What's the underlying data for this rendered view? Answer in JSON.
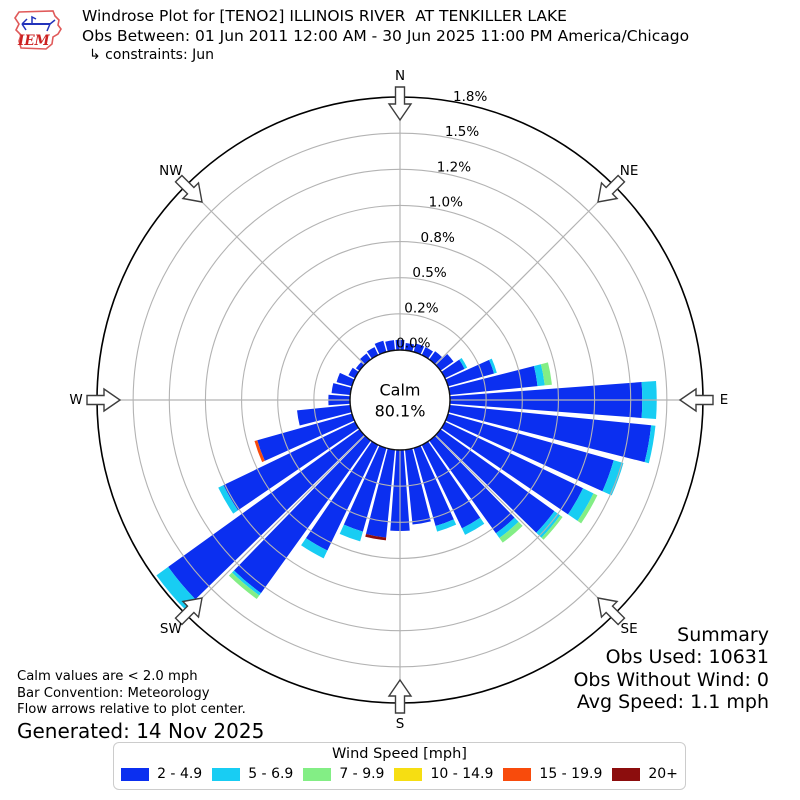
{
  "header": {
    "title": "Windrose Plot for [TENO2] ILLINOIS RIVER  AT TENKILLER LAKE",
    "subtitle": "Obs Between: 01 Jun 2011 12:00 AM - 30 Jun 2025 11:00 PM America/Chicago",
    "constraints": "↳ constraints: Jun",
    "logo_text": "IEM"
  },
  "compass": {
    "labels": [
      "N",
      "NE",
      "E",
      "SE",
      "S",
      "SW",
      "W",
      "NW"
    ],
    "angles_deg": [
      0,
      45,
      90,
      135,
      180,
      225,
      270,
      315
    ]
  },
  "calm": {
    "label": "Calm",
    "value": "80.1%"
  },
  "notes": {
    "lines": [
      "Calm values are < 2.0 mph",
      "Bar Convention: Meteorology",
      "Flow arrows relative to plot center."
    ],
    "generated": "Generated: 14 Nov 2025"
  },
  "summary": {
    "title": "Summary",
    "lines": [
      "Obs Used: 10631",
      "Obs Without Wind: 0",
      "Avg Speed: 1.1 mph"
    ]
  },
  "legend": {
    "title": "Wind Speed [mph]",
    "classes": [
      {
        "label": "2 - 4.9",
        "color": "#0b2ff0"
      },
      {
        "label": "5 - 6.9",
        "color": "#18cdf3"
      },
      {
        "label": "7 - 9.9",
        "color": "#83ee85"
      },
      {
        "label": "10 - 14.9",
        "color": "#f6de12"
      },
      {
        "label": "15 - 19.9",
        "color": "#f84b0c"
      },
      {
        "label": "20+",
        "color": "#8c0d0d"
      }
    ]
  },
  "colors": {
    "grid": "#b3b3b3",
    "outer_ring": "#000000",
    "arrow_stroke": "#3d3d3d",
    "logo_red": "#e05a5a",
    "logo_blue": "#2233bb",
    "logo_text_red": "#c22"
  },
  "chart_data": {
    "type": "windrose",
    "units": "% of observations",
    "rlim": [
      0,
      1.75
    ],
    "ring_labels": [
      "0.0%",
      "0.2%",
      "0.5%",
      "0.8%",
      "1.0%",
      "1.2%",
      "1.5%",
      "1.8%"
    ],
    "ring_values_percent": [
      0,
      0.25,
      0.5,
      0.75,
      1.0,
      1.25,
      1.5,
      1.75
    ],
    "calm_percent": 80.1,
    "bar_sector_deg": 8.5,
    "direction_bins_deg": [
      0,
      10,
      20,
      30,
      40,
      50,
      60,
      70,
      80,
      90,
      100,
      110,
      120,
      130,
      140,
      150,
      160,
      170,
      180,
      190,
      200,
      210,
      220,
      230,
      240,
      250,
      260,
      270,
      280,
      290,
      300,
      310,
      320,
      330,
      340,
      350
    ],
    "series": [
      {
        "name": "2 - 4.9",
        "color": "#0b2ff0",
        "values": [
          0.07,
          0.05,
          0.06,
          0.06,
          0.07,
          0.11,
          0.15,
          0.33,
          0.61,
          1.33,
          1.4,
          1.19,
          1.06,
          0.97,
          0.79,
          0.64,
          0.56,
          0.52,
          0.56,
          0.61,
          0.6,
          0.81,
          1.3,
          1.63,
          1.01,
          0.68,
          0.37,
          0.15,
          0.13,
          0.11,
          0.05,
          0.03,
          0.05,
          0.06,
          0.08,
          0.07
        ]
      },
      {
        "name": "5 - 6.9",
        "color": "#18cdf3",
        "values": [
          0,
          0,
          0,
          0,
          0,
          0,
          0.02,
          0.02,
          0.05,
          0.1,
          0.03,
          0.07,
          0.08,
          0.05,
          0.04,
          0.05,
          0.04,
          0,
          0,
          0,
          0.07,
          0.06,
          0.02,
          0.1,
          0.04,
          0,
          0,
          0,
          0,
          0,
          0,
          0,
          0,
          0,
          0,
          0
        ]
      },
      {
        "name": "7 - 9.9",
        "color": "#83ee85",
        "values": [
          0,
          0,
          0,
          0,
          0,
          0,
          0,
          0,
          0.05,
          0,
          0,
          0,
          0.03,
          0.02,
          0.04,
          0,
          0,
          0,
          0,
          0,
          0,
          0,
          0.03,
          0,
          0,
          0,
          0,
          0,
          0,
          0,
          0,
          0,
          0,
          0,
          0,
          0
        ]
      },
      {
        "name": "10 - 14.9",
        "color": "#f6de12",
        "values": [
          0,
          0,
          0,
          0,
          0,
          0,
          0,
          0,
          0,
          0,
          0,
          0,
          0,
          0,
          0,
          0,
          0,
          0,
          0,
          0,
          0,
          0,
          0,
          0,
          0,
          0,
          0,
          0,
          0,
          0,
          0,
          0,
          0,
          0,
          0,
          0
        ]
      },
      {
        "name": "15 - 19.9",
        "color": "#f84b0c",
        "values": [
          0,
          0,
          0,
          0,
          0,
          0,
          0,
          0,
          0,
          0,
          0,
          0,
          0,
          0,
          0,
          0,
          0,
          0,
          0,
          0,
          0,
          0,
          0,
          0,
          0,
          0.02,
          0,
          0,
          0,
          0,
          0,
          0,
          0,
          0,
          0,
          0
        ]
      },
      {
        "name": "20+",
        "color": "#8c0d0d",
        "values": [
          0,
          0,
          0,
          0,
          0,
          0,
          0,
          0,
          0,
          0,
          0,
          0,
          0,
          0,
          0,
          0,
          0,
          0,
          0,
          0.02,
          0,
          0,
          0,
          0,
          0,
          0,
          0,
          0,
          0,
          0,
          0,
          0,
          0,
          0,
          0,
          0
        ]
      }
    ]
  }
}
